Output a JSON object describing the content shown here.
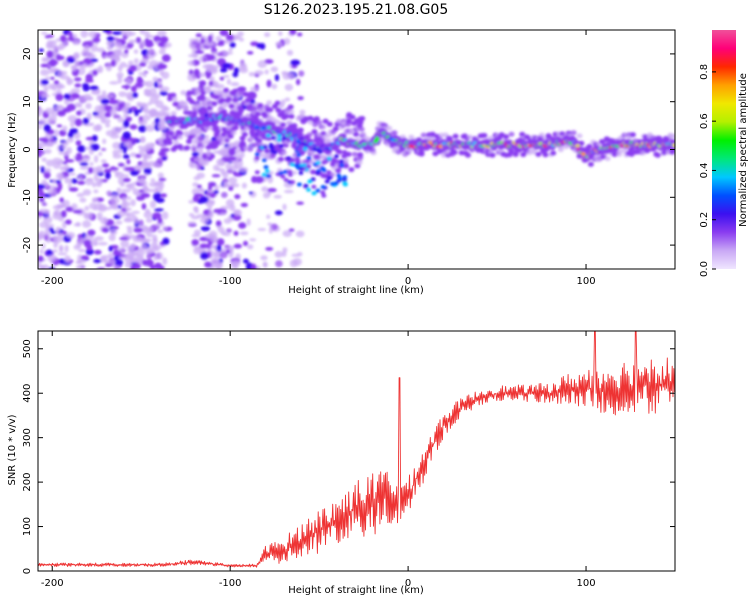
{
  "figure_title": "S126.2023.195.21.08.G05",
  "chart_data": [
    {
      "type": "heatmap",
      "title": "S126.2023.195.21.08.G05",
      "xlabel": "Height of straight line (km)",
      "ylabel": "Frequency (Hz)",
      "xlim": [
        -208,
        150
      ],
      "ylim": [
        -25,
        25
      ],
      "xticks": [
        -200,
        -100,
        0,
        100
      ],
      "xtick_labels": [
        "-200",
        "-100",
        "0",
        "100"
      ],
      "yticks": [
        20,
        10,
        0,
        -10,
        -20
      ],
      "ytick_labels": [
        "20",
        "10",
        "0",
        "-10",
        "-20"
      ],
      "colorbar": {
        "label": "Normalized spectral amplitude",
        "range": [
          0,
          0.97
        ],
        "ticks": [
          0.0,
          0.2,
          0.4,
          0.6,
          0.8
        ],
        "tick_labels": [
          "0.0",
          "0.2",
          "0.4",
          "0.6",
          "0.8"
        ],
        "colors": [
          "#f0e6ff",
          "#c9a8f5",
          "#8a3cf0",
          "#3b10f0",
          "#0050ff",
          "#00c8ff",
          "#00e878",
          "#00f000",
          "#b4f000",
          "#f0e800",
          "#ffa000",
          "#ff2800",
          "#ff0078",
          "#f0509a"
        ]
      },
      "ridge": {
        "description": "dominant frequency track vs height",
        "x": [
          -135,
          -125,
          -115,
          -105,
          -95,
          -85,
          -75,
          -65,
          -55,
          -45,
          -38,
          -30,
          -20,
          -15,
          -10,
          0,
          20,
          40,
          60,
          80,
          90,
          95,
          100,
          105,
          110,
          120,
          130,
          140,
          150
        ],
        "freq_hz": [
          6,
          6,
          6,
          7,
          6,
          5,
          4,
          3,
          1,
          0,
          2,
          1,
          1,
          4,
          2,
          1,
          1,
          1,
          1,
          1,
          2,
          1,
          -2,
          0,
          0,
          1,
          1,
          1,
          1
        ]
      }
    },
    {
      "type": "line",
      "xlabel": "Height of straight line (km)",
      "ylabel": "SNR (10 * v/v)",
      "xlim": [
        -208,
        150
      ],
      "ylim": [
        0,
        540
      ],
      "xticks": [
        -200,
        -100,
        0,
        100
      ],
      "xtick_labels": [
        "-200",
        "-100",
        "0",
        "100"
      ],
      "yticks": [
        0,
        100,
        200,
        300,
        400,
        500
      ],
      "ytick_labels": [
        "0",
        "100",
        "200",
        "300",
        "400",
        "500"
      ],
      "color": "#ee3333",
      "envelope": {
        "x": [
          -208,
          -140,
          -120,
          -100,
          -85,
          -80,
          -70,
          -60,
          -50,
          -40,
          -30,
          -20,
          -10,
          -5,
          0,
          10,
          20,
          30,
          40,
          50,
          60,
          70,
          80,
          90,
          100,
          110,
          120,
          130,
          140,
          150
        ],
        "base": [
          14,
          14,
          20,
          12,
          12,
          40,
          45,
          70,
          90,
          110,
          140,
          150,
          170,
          150,
          170,
          250,
          330,
          370,
          390,
          400,
          400,
          400,
          400,
          410,
          410,
          410,
          410,
          420,
          420,
          420
        ],
        "noise": [
          4,
          4,
          6,
          3,
          4,
          18,
          30,
          40,
          50,
          55,
          65,
          70,
          70,
          50,
          40,
          40,
          30,
          20,
          18,
          18,
          18,
          20,
          25,
          35,
          45,
          55,
          65,
          70,
          70,
          60
        ]
      },
      "peaks": [
        {
          "x": -5,
          "y": 435
        },
        {
          "x": 105,
          "y": 540
        },
        {
          "x": 128,
          "y": 540
        }
      ]
    }
  ]
}
